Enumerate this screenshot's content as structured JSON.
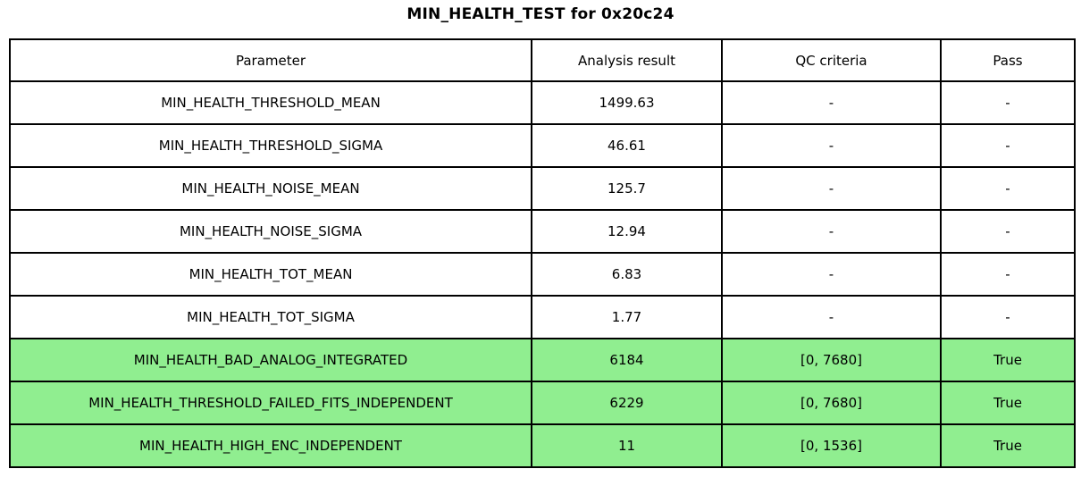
{
  "title": "MIN_HEALTH_TEST for 0x20c24",
  "table": {
    "columns": [
      "Parameter",
      "Analysis result",
      "QC criteria",
      "Pass"
    ],
    "rows": [
      {
        "parameter": "MIN_HEALTH_THRESHOLD_MEAN",
        "result": "1499.63",
        "qc": "-",
        "pass": "-",
        "highlight": false
      },
      {
        "parameter": "MIN_HEALTH_THRESHOLD_SIGMA",
        "result": "46.61",
        "qc": "-",
        "pass": "-",
        "highlight": false
      },
      {
        "parameter": "MIN_HEALTH_NOISE_MEAN",
        "result": "125.7",
        "qc": "-",
        "pass": "-",
        "highlight": false
      },
      {
        "parameter": "MIN_HEALTH_NOISE_SIGMA",
        "result": "12.94",
        "qc": "-",
        "pass": "-",
        "highlight": false
      },
      {
        "parameter": "MIN_HEALTH_TOT_MEAN",
        "result": "6.83",
        "qc": "-",
        "pass": "-",
        "highlight": false
      },
      {
        "parameter": "MIN_HEALTH_TOT_SIGMA",
        "result": "1.77",
        "qc": "-",
        "pass": "-",
        "highlight": false
      },
      {
        "parameter": "MIN_HEALTH_BAD_ANALOG_INTEGRATED",
        "result": "6184",
        "qc": "[0, 7680]",
        "pass": "True",
        "highlight": true
      },
      {
        "parameter": "MIN_HEALTH_THRESHOLD_FAILED_FITS_INDEPENDENT",
        "result": "6229",
        "qc": "[0, 7680]",
        "pass": "True",
        "highlight": true
      },
      {
        "parameter": "MIN_HEALTH_HIGH_ENC_INDEPENDENT",
        "result": "11",
        "qc": "[0, 1536]",
        "pass": "True",
        "highlight": true
      }
    ]
  },
  "colors": {
    "pass_highlight": "#90EE90",
    "border": "#000000",
    "background": "#FFFFFF",
    "text": "#000000"
  }
}
